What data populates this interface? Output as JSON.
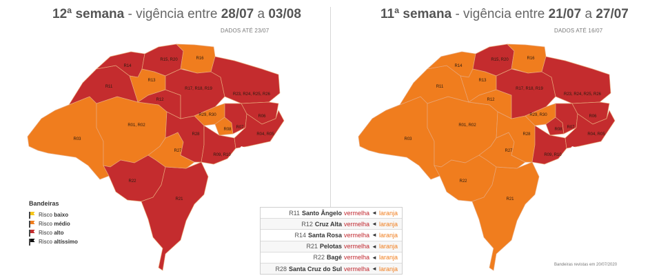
{
  "colors": {
    "vermelho": "#c42c2e",
    "laranja": "#f07d1e",
    "amarelo": "#f5c518",
    "preto": "#111111",
    "borders": "#e8a77a"
  },
  "left": {
    "title_week": "12ª semana",
    "title_rest": " - vigência entre ",
    "date_from": "28/07",
    "date_sep": " a ",
    "date_to": "03/08",
    "dados": "DADOS ATÉ 23/07",
    "regions": {
      "R14": "vermelho",
      "R15, R20": "vermelho",
      "R16": "laranja",
      "R13": "laranja",
      "R11": "vermelho",
      "R12": "vermelho",
      "R17, R18, R19": "vermelho",
      "R23, R24, R25, R26": "vermelho",
      "R01, R02": "laranja",
      "R03": "laranja",
      "R29, R30": "laranja",
      "R06": "vermelho",
      "R08": "laranja",
      "R07": "vermelho",
      "R28": "vermelho",
      "R04, R05": "vermelho",
      "R27": "laranja",
      "R09, R10": "vermelho",
      "R22": "vermelho",
      "R21": "vermelho"
    }
  },
  "right": {
    "title_week": "11ª semana",
    "title_rest": " - vigência entre ",
    "date_from": "21/07",
    "date_sep": " a ",
    "date_to": "27/07",
    "dados": "DADOS ATÉ 16/07",
    "regions": {
      "R14": "laranja",
      "R15, R20": "vermelho",
      "R16": "laranja",
      "R13": "laranja",
      "R11": "laranja",
      "R12": "laranja",
      "R17, R18, R19": "vermelho",
      "R23, R24, R25, R26": "vermelho",
      "R01, R02": "laranja",
      "R03": "laranja",
      "R29, R30": "laranja",
      "R06": "vermelho",
      "R08": "vermelho",
      "R07": "vermelho",
      "R28": "laranja",
      "R04, R05": "vermelho",
      "R27": "laranja",
      "R09, R10": "vermelho",
      "R22": "laranja",
      "R21": "laranja"
    },
    "footnote": "Bandeiras revistas em 20/07/2020"
  },
  "legend": {
    "title": "Bandeiras",
    "items": [
      {
        "prefix": "Risco ",
        "level": "baixo",
        "color": "#f5c518"
      },
      {
        "prefix": "Risco ",
        "level": "médio",
        "color": "#f07d1e"
      },
      {
        "prefix": "Risco ",
        "level": "alto",
        "color": "#c42c2e"
      },
      {
        "prefix": "Risco ",
        "level": "altíssimo",
        "color": "#111111"
      }
    ]
  },
  "changes": [
    {
      "code": "R11",
      "name": "Santo Ângelo",
      "from": "vermelha",
      "to": "laranja"
    },
    {
      "code": "R12",
      "name": "Cruz Alta",
      "from": "vermelha",
      "to": "laranja"
    },
    {
      "code": "R14",
      "name": "Santa Rosa",
      "from": "vermelha",
      "to": "laranja"
    },
    {
      "code": "R21",
      "name": "Pelotas",
      "from": "vermelha",
      "to": "laranja"
    },
    {
      "code": "R22",
      "name": "Bagé",
      "from": "vermelha",
      "to": "laranja"
    },
    {
      "code": "R28",
      "name": "Santa Cruz do Sul",
      "from": "vermelha",
      "to": "laranja"
    }
  ]
}
